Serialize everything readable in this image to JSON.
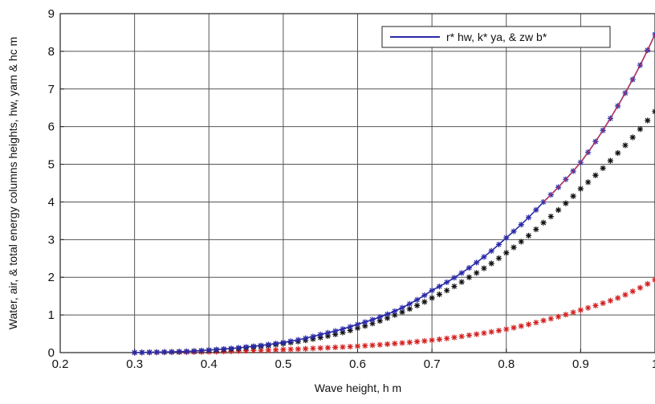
{
  "chart_data": {
    "type": "scatter",
    "xlabel": "Wave  height,  h  m",
    "ylabel": "Water,  air,  &  total energy  columns  heights,  hw,  yam & hc  m",
    "xlim": [
      0.2,
      1.0
    ],
    "ylim": [
      0,
      9
    ],
    "xticks": [
      "0.2",
      "0.3",
      "0.4",
      "0.5",
      "0.6",
      "0.7",
      "0.8",
      "0.9",
      "1"
    ],
    "yticks": [
      "0",
      "1",
      "2",
      "3",
      "4",
      "5",
      "6",
      "7",
      "8",
      "9"
    ],
    "grid": true,
    "legend_position": "top-right",
    "legend_label": "r* hw,  k* ya,  & zw b*",
    "x": [
      0.3,
      0.35,
      0.4,
      0.45,
      0.5,
      0.55,
      0.6,
      0.65,
      0.7,
      0.75,
      0.8,
      0.85,
      0.9,
      0.95,
      1.0
    ],
    "series": [
      {
        "color": "#d42020",
        "marker": "star",
        "values": [
          0.0,
          0.01,
          0.02,
          0.05,
          0.08,
          0.12,
          0.17,
          0.24,
          0.33,
          0.46,
          0.62,
          0.85,
          1.13,
          1.45,
          1.93
        ]
      },
      {
        "color": "#111111",
        "marker": "star",
        "values": [
          0.0,
          0.02,
          0.06,
          0.13,
          0.24,
          0.4,
          0.65,
          1.0,
          1.45,
          2.0,
          2.65,
          3.45,
          4.35,
          5.3,
          6.4
        ]
      },
      {
        "color": "#2a2aa8",
        "marker": "star-line",
        "values": [
          0.0,
          0.02,
          0.07,
          0.15,
          0.27,
          0.48,
          0.75,
          1.1,
          1.65,
          2.25,
          3.05,
          4.0,
          5.05,
          6.55,
          8.45
        ]
      }
    ],
    "line_overlay_color": "#ff3030",
    "legend_line_color": "#2a2aa8"
  }
}
